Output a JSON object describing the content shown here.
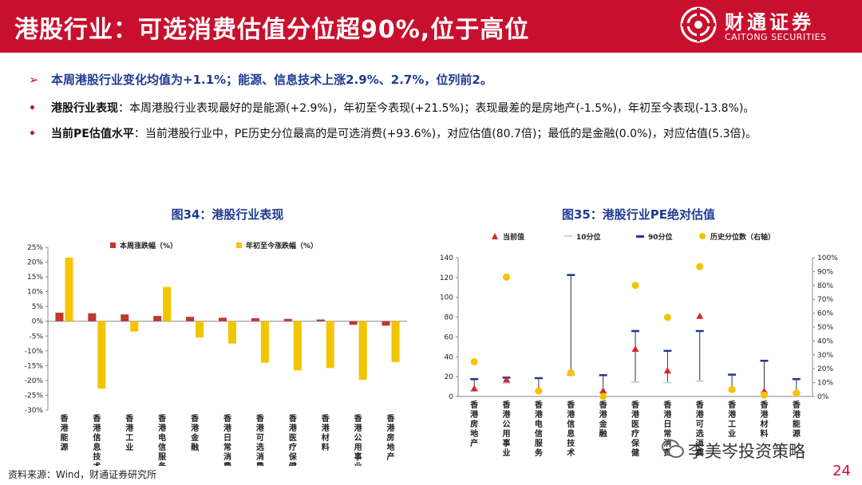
{
  "header": {
    "title": "港股行业：可选消费估值分位超90%,位于高位",
    "logo_cn": "财通证券",
    "logo_en": "CAITONG SECURITIES"
  },
  "bullets": {
    "main": "本周港股行业变化均值为+1.1%；能源、信息技术上涨2.9%、2.7%，位列前2。",
    "perf_key": "港股行业表现",
    "perf_text": "：本周港股行业表现最好的是能源(+2.9%)，年初至今表现(+21.5%)；表现最差的是房地产(-1.5%)，年初至今表现(-13.8%)。",
    "pe_key": "当前PE估值水平",
    "pe_text": "：当前港股行业中，PE历史分位最高的是可选消费(+93.6%)，对应估值(80.7倍)；最低的是金融(0.0%)，对应估值(5.3倍)。"
  },
  "footer": {
    "source": "资料来源：Wind，财通证券研究所",
    "wechat": "李美岑投资策略",
    "page": "24"
  },
  "chart_data": [
    {
      "type": "bar",
      "title": "图34：港股行业表现",
      "categories": [
        "香港能源",
        "香港信息技术",
        "香港工业",
        "香港电信服务",
        "香港金融",
        "香港日常消费",
        "香港可选消费",
        "香港医疗保健",
        "香港材料",
        "香港公用事业",
        "香港房地产"
      ],
      "series": [
        {
          "name": "本周涨跌幅（%）",
          "color": "#c0392b",
          "values": [
            2.9,
            2.7,
            2.3,
            1.8,
            1.5,
            1.2,
            1.0,
            0.8,
            0.6,
            -1.2,
            -1.5
          ]
        },
        {
          "name": "年初至今涨跌幅（%）",
          "color": "#f5c400",
          "values": [
            21.5,
            -22.8,
            -3.5,
            11.6,
            -5.5,
            -7.5,
            -14.0,
            -16.6,
            -15.8,
            -19.8,
            -13.8
          ]
        }
      ],
      "ylim": [
        -30,
        25
      ],
      "yticks": [
        "25%",
        "20%",
        "15%",
        "10%",
        "5%",
        "0%",
        "-5%",
        "-10%",
        "-15%",
        "-20%",
        "-25%",
        "-30%"
      ],
      "legend": "top",
      "grid": false
    },
    {
      "type": "scatter",
      "title": "图35：港股行业PE绝对估值",
      "categories": [
        "香港房地产",
        "香港公用事业",
        "香港电信服务",
        "香港信息技术",
        "香港金融",
        "香港医疗保健",
        "香港日常消费",
        "香港可选消费",
        "香港工业",
        "香港材料",
        "香港能源"
      ],
      "series": [
        {
          "name": "当前值",
          "color": "#d62728",
          "values": [
            7.5,
            16.5,
            6.5,
            23.5,
            5.3,
            47.5,
            25.5,
            80.7,
            7.5,
            5.0,
            4.0
          ]
        },
        {
          "name": "10分位",
          "color": "#bdd7ee",
          "values": [
            6.0,
            13.5,
            6.0,
            22.5,
            4.5,
            14.5,
            14.0,
            15.5,
            7.0,
            4.5,
            3.5
          ]
        },
        {
          "name": "90分位",
          "color": "#1f3a93",
          "values": [
            17.5,
            19.0,
            18.5,
            122.5,
            21.5,
            66.0,
            46.0,
            66.0,
            22.0,
            36.0,
            17.5
          ]
        },
        {
          "name": "历史分位数（右轴）",
          "color": "#f5c400",
          "axis": "right",
          "values": [
            25.0,
            86.0,
            4.0,
            17.0,
            0.0,
            80.0,
            57.0,
            93.6,
            5.0,
            1.0,
            2.5
          ]
        }
      ],
      "ylim": [
        0,
        140
      ],
      "yticks": [
        "140",
        "120",
        "100",
        "80",
        "60",
        "40",
        "20",
        "0"
      ],
      "y2lim": [
        0,
        100
      ],
      "y2ticks": [
        "100%",
        "90%",
        "80%",
        "70%",
        "60%",
        "50%",
        "40%",
        "30%",
        "20%",
        "10%",
        "0%"
      ],
      "legend": "top",
      "grid": false
    }
  ]
}
